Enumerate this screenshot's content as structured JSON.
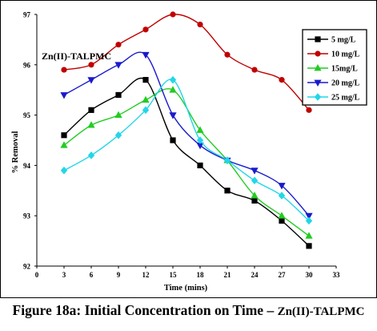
{
  "caption": {
    "main": "Figure 18a: Initial Concentration on Time – ",
    "sub": "Zn(II)-TALPMC"
  },
  "chart_data": {
    "type": "line",
    "title": "Zn(II)-TALPMC",
    "xlabel": "Time (mins)",
    "ylabel": "% Removal",
    "xlim": [
      0,
      33
    ],
    "ylim": [
      92,
      97
    ],
    "xticks": [
      0,
      3,
      6,
      9,
      12,
      15,
      18,
      21,
      24,
      27,
      30,
      33
    ],
    "yticks": [
      92,
      93,
      94,
      95,
      96,
      97
    ],
    "grid": false,
    "legend_position": "top-right",
    "x": [
      3,
      6,
      9,
      12,
      15,
      18,
      21,
      24,
      27,
      30
    ],
    "series": [
      {
        "name": "5 mg/L",
        "color": "#000000",
        "marker": "square",
        "values": [
          94.6,
          95.1,
          95.4,
          95.7,
          94.5,
          94.0,
          93.5,
          93.3,
          92.9,
          92.4
        ]
      },
      {
        "name": "10 mg/L",
        "color": "#c00000",
        "marker": "circle",
        "values": [
          95.9,
          96.0,
          96.4,
          96.7,
          97.0,
          96.8,
          96.2,
          95.9,
          95.7,
          95.1
        ]
      },
      {
        "name": "15mg/L",
        "color": "#22cc22",
        "marker": "triangle-up",
        "values": [
          94.4,
          94.8,
          95.0,
          95.3,
          95.5,
          94.7,
          94.1,
          93.4,
          93.0,
          92.6
        ]
      },
      {
        "name": "20 mg/L",
        "color": "#1a1acc",
        "marker": "triangle-down",
        "values": [
          95.4,
          95.7,
          96.0,
          96.2,
          95.0,
          94.4,
          94.1,
          93.9,
          93.6,
          93.0
        ]
      },
      {
        "name": "25 mg/L",
        "color": "#22d6e8",
        "marker": "diamond",
        "values": [
          93.9,
          94.2,
          94.6,
          95.1,
          95.7,
          94.5,
          94.1,
          93.7,
          93.4,
          92.9
        ]
      }
    ]
  }
}
